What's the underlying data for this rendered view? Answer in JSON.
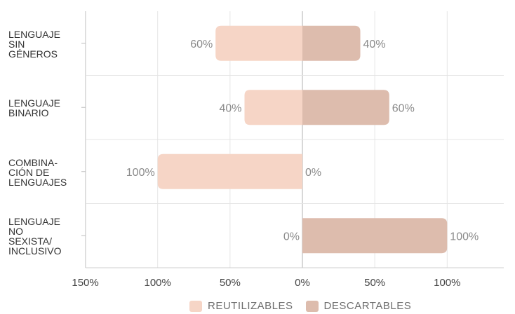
{
  "chart_data": {
    "type": "bar",
    "orientation": "horizontal-diverging",
    "categories": [
      "LENGUAJE\nSIN\nGÉNEROS",
      "LENGUAJE\nBINARIO",
      "COMBINA-\nCIÓN DE\nLENGUAJES",
      "LENGUAJE\nNO\nSEXISTA/\nINCLUSIVO"
    ],
    "series": [
      {
        "name": "REUTILIZABLES",
        "values": [
          60,
          40,
          100,
          0
        ],
        "labels": [
          "60%",
          "40%",
          "100%",
          "0%"
        ],
        "color": "#f6d5c6"
      },
      {
        "name": "DESCARTABLES",
        "values": [
          40,
          60,
          0,
          100
        ],
        "labels": [
          "40%",
          "60%",
          "0%",
          "100%"
        ],
        "color": "#ddbcad"
      }
    ],
    "xlim": [
      -150,
      150
    ],
    "xticks": [
      -150,
      -100,
      -50,
      0,
      50,
      100
    ],
    "xtick_labels": [
      "150%",
      "100%",
      "50%",
      "0%",
      "50%",
      "100%"
    ],
    "grid": true,
    "legend_position": "bottom"
  }
}
